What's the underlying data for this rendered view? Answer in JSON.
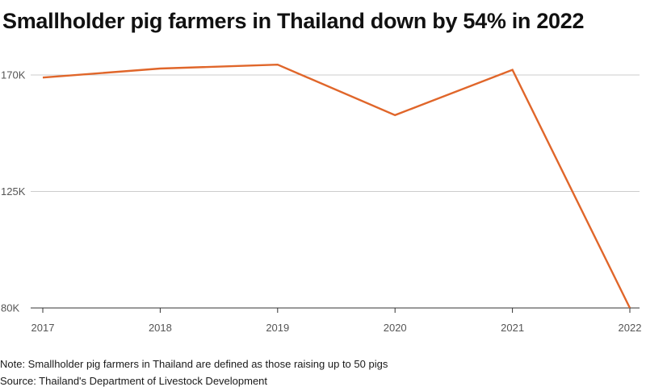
{
  "chart_data": {
    "type": "line",
    "title": "Smallholder pig farmers in Thailand down by 54% in 2022",
    "x": [
      "2017",
      "2018",
      "2019",
      "2020",
      "2021",
      "2022"
    ],
    "series": [
      {
        "values": [
          169000,
          172500,
          174000,
          154500,
          172000,
          80000
        ],
        "color": "#e0662a"
      }
    ],
    "xlabel": "",
    "ylabel": "",
    "ylim": [
      80000,
      170000
    ],
    "yticks": [
      80000,
      125000,
      170000
    ],
    "ytick_labels": [
      "80K",
      "125K",
      "170K"
    ],
    "grid": "horizontal",
    "note": "Note: Smallholder pig farmers in Thailand are defined as those raising up to 50 pigs",
    "source": "Source: Thailand's Department of Livestock Development"
  }
}
